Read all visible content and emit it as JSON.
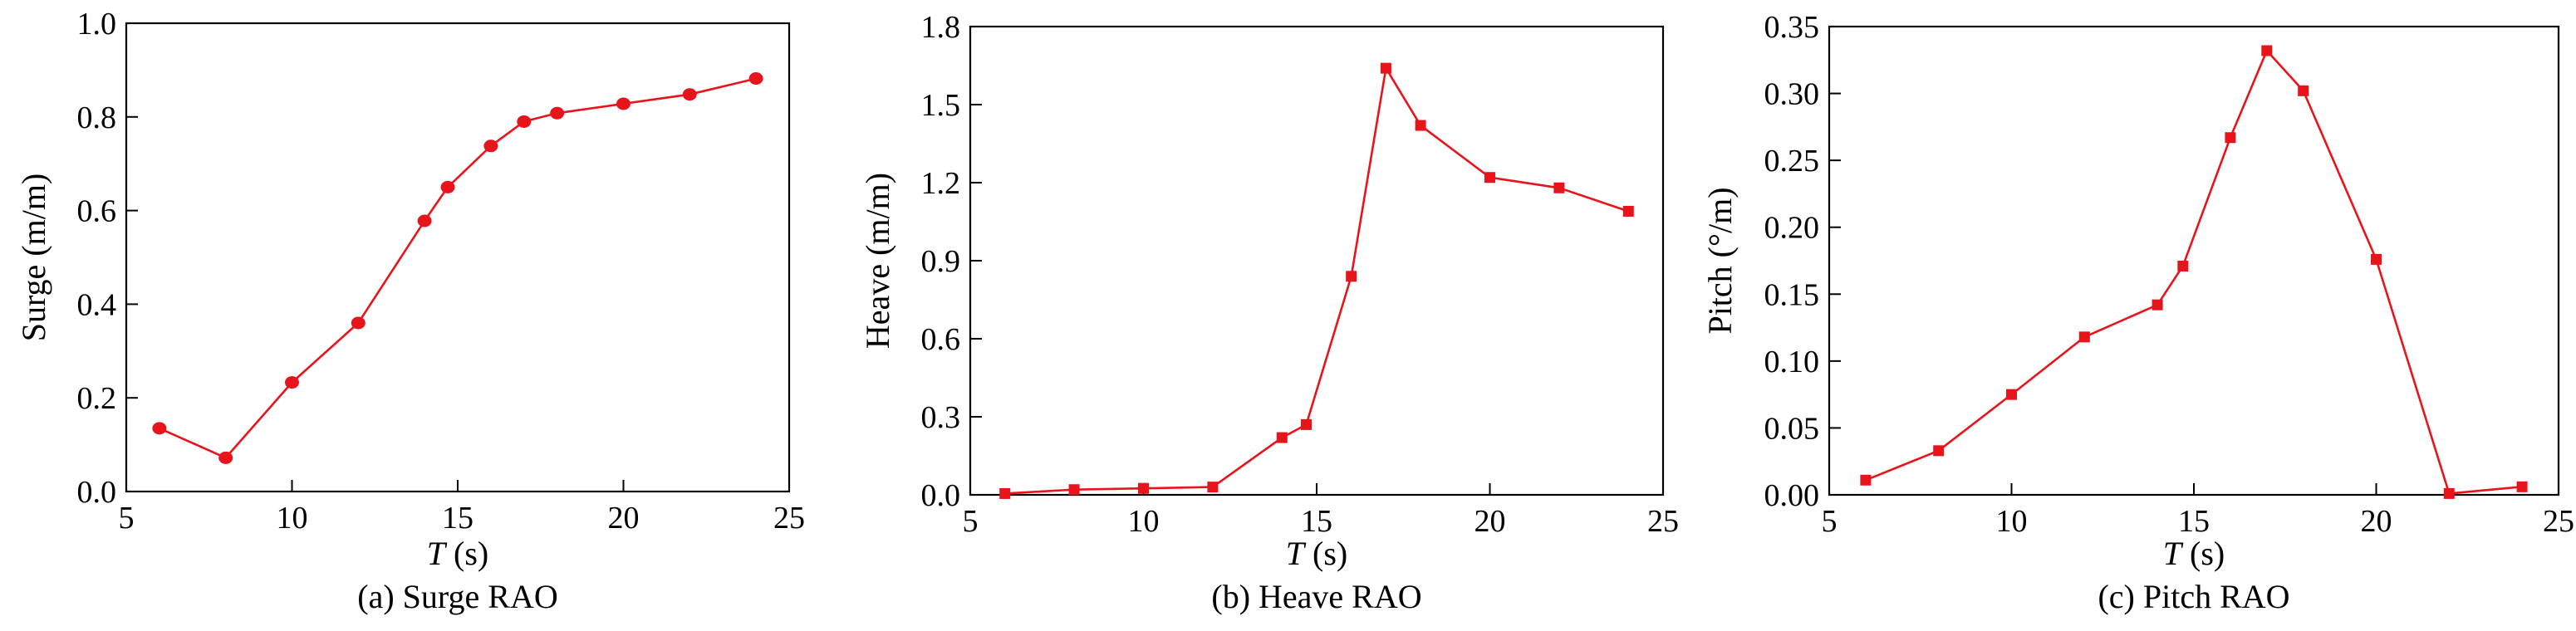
{
  "chart_data": [
    {
      "type": "line",
      "caption": "(a) Surge RAO",
      "xlabel_var": "T",
      "xlabel_unit": "(s)",
      "ylabel": "Surge (m/m)",
      "xlim": [
        5,
        25
      ],
      "ylim": [
        0,
        1.0
      ],
      "xticks": [
        "5",
        "10",
        "15",
        "20",
        "25"
      ],
      "yticks": [
        "0.0",
        "0.2",
        "0.4",
        "0.6",
        "0.8",
        "1.0"
      ],
      "grid": false,
      "marker": "circle",
      "color": "#e8141c",
      "series": [
        {
          "x": [
            6,
            8,
            10,
            12,
            14,
            14.7,
            16,
            17,
            18,
            20,
            22,
            24
          ],
          "values": [
            0.135,
            0.072,
            0.233,
            0.36,
            0.578,
            0.65,
            0.738,
            0.79,
            0.808,
            0.828,
            0.848,
            0.882
          ]
        }
      ]
    },
    {
      "type": "line",
      "caption": "(b) Heave RAO",
      "xlabel_var": "T",
      "xlabel_unit": "(s)",
      "ylabel": "Heave (m/m)",
      "xlim": [
        5,
        25
      ],
      "ylim": [
        0,
        1.8
      ],
      "xticks": [
        "5",
        "10",
        "15",
        "20",
        "25"
      ],
      "yticks": [
        "0.0",
        "0.3",
        "0.6",
        "0.9",
        "1.2",
        "1.5",
        "1.8"
      ],
      "grid": false,
      "marker": "square",
      "color": "#e8141c",
      "series": [
        {
          "x": [
            6,
            8,
            10,
            12,
            14,
            14.7,
            16,
            17,
            18,
            20,
            22,
            24
          ],
          "values": [
            0.005,
            0.02,
            0.025,
            0.03,
            0.22,
            0.27,
            0.84,
            1.64,
            1.42,
            1.22,
            1.18,
            1.09
          ]
        }
      ]
    },
    {
      "type": "line",
      "caption": "(c) Pitch RAO",
      "xlabel_var": "T",
      "xlabel_unit": "(s)",
      "ylabel": "Pitch (°/m)",
      "xlim": [
        5,
        25
      ],
      "ylim": [
        0,
        0.35
      ],
      "xticks": [
        "5",
        "10",
        "15",
        "20",
        "25"
      ],
      "yticks": [
        "0.00",
        "0.05",
        "0.10",
        "0.15",
        "0.20",
        "0.25",
        "0.30",
        "0.35"
      ],
      "grid": false,
      "marker": "square",
      "color": "#e8141c",
      "series": [
        {
          "x": [
            6,
            8,
            10,
            12,
            14,
            14.7,
            16,
            17,
            18,
            20,
            22,
            24
          ],
          "values": [
            0.011,
            0.033,
            0.075,
            0.118,
            0.142,
            0.171,
            0.267,
            0.332,
            0.302,
            0.176,
            0.001,
            0.006
          ]
        }
      ]
    }
  ]
}
